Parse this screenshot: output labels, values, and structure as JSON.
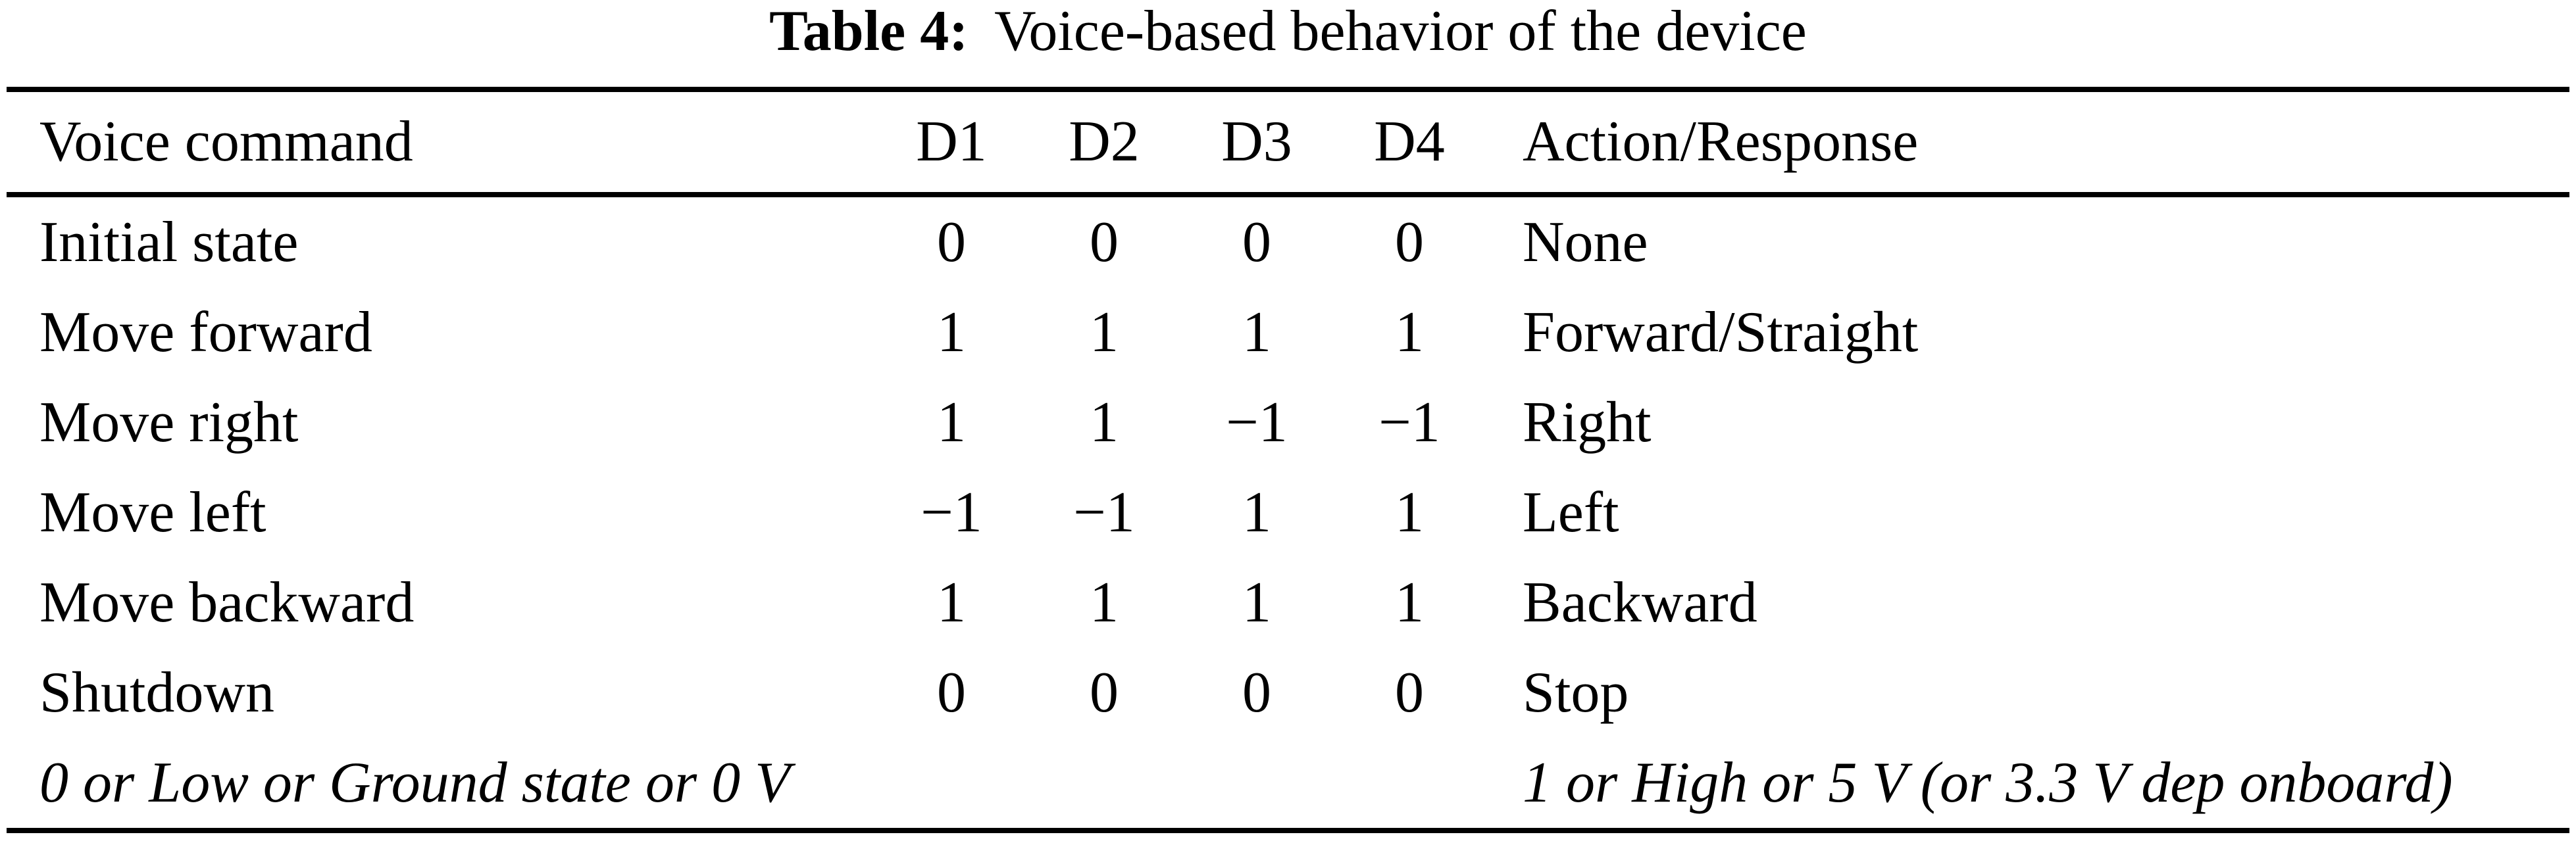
{
  "caption": {
    "label": "Table 4:",
    "text": "Voice-based behavior of the device"
  },
  "table": {
    "headers": [
      "Voice command",
      "D1",
      "D2",
      "D3",
      "D4",
      "Action/Response"
    ],
    "rows": [
      {
        "cells": [
          "Initial state",
          "0",
          "0",
          "0",
          "0",
          "None"
        ]
      },
      {
        "cells": [
          "Move forward",
          "1",
          "1",
          "1",
          "1",
          "Forward/Straight"
        ]
      },
      {
        "cells": [
          "Move right",
          "1",
          "1",
          "−1",
          "−1",
          "Right"
        ]
      },
      {
        "cells": [
          "Move left",
          "−1",
          "−1",
          "1",
          "1",
          "Left"
        ]
      },
      {
        "cells": [
          "Move backward",
          "1",
          "1",
          "1",
          "1",
          "Backward"
        ]
      },
      {
        "cells": [
          "Shutdown",
          "0",
          "0",
          "0",
          "0",
          "Stop"
        ]
      }
    ],
    "footnotes": {
      "left": "0 or Low or Ground state or 0 V",
      "right": "1 or High or 5 V (or 3.3 V dep onboard)"
    }
  },
  "colors": {
    "text": "#000000",
    "background": "#ffffff",
    "rule": "#000000"
  }
}
